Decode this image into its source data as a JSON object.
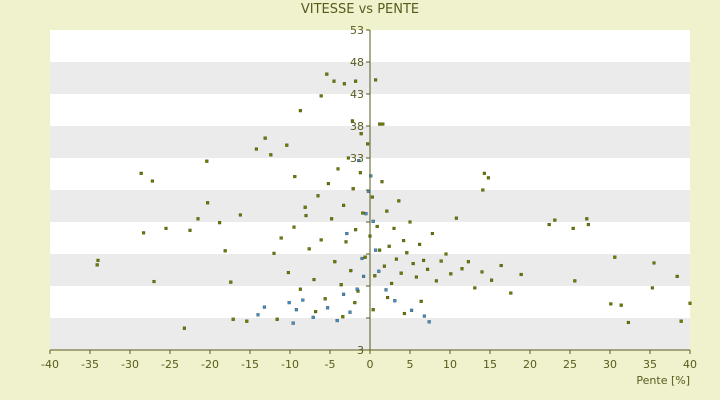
{
  "chart_data": {
    "type": "scatter",
    "title": "VITESSE vs PENTE",
    "xlabel": "Pente [%]",
    "ylabel": "",
    "xlim": [
      -40,
      40
    ],
    "ylim": [
      3,
      53
    ],
    "x_ticks": [
      -40,
      -35,
      -30,
      -25,
      -20,
      -15,
      -10,
      -5,
      0,
      5,
      10,
      15,
      20,
      25,
      30,
      35,
      40
    ],
    "y_ticks": [
      3,
      8,
      13,
      18,
      23,
      28,
      33,
      38,
      43,
      48,
      53
    ],
    "y_ticks_visible_labels": [
      3,
      33,
      38,
      43,
      48,
      53
    ],
    "grid": "horizontal bands",
    "legend": "none",
    "colors": {
      "background": "#eff2cc",
      "plot_light": "#ffffff",
      "plot_band": "#ebebeb",
      "text": "#5a5a1e",
      "axis": "#5a5a1e",
      "series_main": "#6b7a00",
      "series_alt": "#3a8fd8"
    },
    "series": [
      {
        "color": "#6b7a00",
        "points": [
          [
            -34.0,
            17.0
          ],
          [
            -34.1,
            16.3
          ],
          [
            -28.6,
            30.6
          ],
          [
            -28.3,
            21.3
          ],
          [
            -27.2,
            29.4
          ],
          [
            -27.0,
            13.7
          ],
          [
            -25.5,
            22.0
          ],
          [
            -23.2,
            6.4
          ],
          [
            -22.5,
            21.7
          ],
          [
            -21.5,
            23.5
          ],
          [
            -20.4,
            32.5
          ],
          [
            -20.3,
            26.0
          ],
          [
            -18.8,
            22.9
          ],
          [
            -18.1,
            18.5
          ],
          [
            -17.4,
            13.6
          ],
          [
            -17.1,
            7.8
          ],
          [
            -16.2,
            24.1
          ],
          [
            -15.4,
            7.5
          ],
          [
            -14.2,
            34.4
          ],
          [
            -13.1,
            36.1
          ],
          [
            -12.4,
            33.5
          ],
          [
            -11.6,
            7.8
          ],
          [
            -10.4,
            35.0
          ],
          [
            -9.4,
            30.1
          ],
          [
            -8.7,
            40.4
          ],
          [
            -8.0,
            24.0
          ],
          [
            -6.1,
            42.7
          ],
          [
            -5.4,
            46.1
          ],
          [
            -4.5,
            45.0
          ],
          [
            -3.2,
            44.6
          ],
          [
            -2.2,
            38.8
          ],
          [
            -1.8,
            45.0
          ],
          [
            -1.1,
            36.8
          ],
          [
            0.7,
            45.2
          ],
          [
            1.2,
            38.3
          ],
          [
            1.6,
            38.3
          ],
          [
            14.3,
            30.6
          ],
          [
            14.8,
            29.9
          ],
          [
            14.1,
            28.0
          ],
          [
            22.4,
            22.6
          ],
          [
            23.1,
            23.3
          ],
          [
            25.4,
            22.0
          ],
          [
            25.6,
            13.8
          ],
          [
            27.1,
            23.5
          ],
          [
            27.3,
            22.6
          ],
          [
            30.1,
            10.2
          ],
          [
            30.6,
            17.5
          ],
          [
            31.4,
            10.0
          ],
          [
            32.3,
            7.3
          ],
          [
            35.5,
            16.6
          ],
          [
            35.3,
            12.7
          ],
          [
            38.4,
            14.5
          ],
          [
            38.9,
            7.5
          ],
          [
            40.0,
            10.3
          ],
          [
            -12.0,
            18.1
          ],
          [
            -11.1,
            20.5
          ],
          [
            -10.2,
            15.1
          ],
          [
            -9.5,
            22.2
          ],
          [
            -8.7,
            12.5
          ],
          [
            -8.1,
            25.3
          ],
          [
            -7.6,
            18.8
          ],
          [
            -7.0,
            14.0
          ],
          [
            -6.5,
            27.1
          ],
          [
            -6.1,
            20.2
          ],
          [
            -5.6,
            11.0
          ],
          [
            -5.2,
            29.0
          ],
          [
            -4.8,
            23.5
          ],
          [
            -4.4,
            16.8
          ],
          [
            -4.0,
            31.3
          ],
          [
            -3.6,
            13.2
          ],
          [
            -3.3,
            25.6
          ],
          [
            -3.0,
            19.9
          ],
          [
            -2.7,
            33.0
          ],
          [
            -2.4,
            15.4
          ],
          [
            -2.1,
            28.2
          ],
          [
            -1.8,
            21.8
          ],
          [
            -1.5,
            12.2
          ],
          [
            -1.2,
            30.7
          ],
          [
            -0.9,
            24.4
          ],
          [
            -0.6,
            17.5
          ],
          [
            -0.3,
            35.2
          ],
          [
            0.0,
            20.8
          ],
          [
            0.3,
            26.9
          ],
          [
            0.6,
            14.6
          ],
          [
            0.9,
            22.3
          ],
          [
            1.2,
            18.6
          ],
          [
            1.5,
            29.3
          ],
          [
            1.8,
            16.1
          ],
          [
            2.1,
            24.7
          ],
          [
            2.4,
            19.2
          ],
          [
            2.7,
            13.4
          ],
          [
            3.0,
            22.0
          ],
          [
            3.3,
            17.2
          ],
          [
            3.6,
            26.3
          ],
          [
            3.9,
            15.0
          ],
          [
            4.2,
            20.1
          ],
          [
            4.6,
            18.2
          ],
          [
            5.0,
            23.0
          ],
          [
            5.4,
            16.5
          ],
          [
            5.8,
            14.4
          ],
          [
            6.2,
            19.5
          ],
          [
            6.7,
            17.0
          ],
          [
            7.2,
            15.6
          ],
          [
            7.8,
            21.2
          ],
          [
            8.3,
            13.8
          ],
          [
            8.9,
            16.9
          ],
          [
            9.5,
            18.0
          ],
          [
            10.1,
            14.9
          ],
          [
            10.8,
            23.6
          ],
          [
            11.5,
            15.7
          ],
          [
            12.3,
            16.8
          ],
          [
            13.1,
            12.7
          ],
          [
            14.0,
            15.2
          ],
          [
            15.2,
            13.9
          ],
          [
            16.4,
            16.2
          ],
          [
            17.6,
            11.9
          ],
          [
            18.9,
            14.8
          ],
          [
            -3.4,
            8.2
          ],
          [
            -1.9,
            10.4
          ],
          [
            0.4,
            9.3
          ],
          [
            2.2,
            11.2
          ],
          [
            4.3,
            8.7
          ],
          [
            6.4,
            10.6
          ],
          [
            -6.8,
            9.0
          ]
        ]
      },
      {
        "color": "#3a8fd8",
        "points": [
          [
            -14.0,
            8.5
          ],
          [
            -13.2,
            9.7
          ],
          [
            -10.1,
            10.4
          ],
          [
            -9.6,
            7.2
          ],
          [
            -9.2,
            9.3
          ],
          [
            -8.4,
            10.8
          ],
          [
            -7.1,
            8.1
          ],
          [
            -5.3,
            9.6
          ],
          [
            -4.1,
            7.6
          ],
          [
            -3.3,
            11.7
          ],
          [
            -2.5,
            8.9
          ],
          [
            -1.6,
            12.5
          ],
          [
            -1.0,
            17.3
          ],
          [
            -0.5,
            24.3
          ],
          [
            -0.2,
            27.8
          ],
          [
            0.1,
            30.2
          ],
          [
            0.4,
            23.1
          ],
          [
            0.7,
            18.6
          ],
          [
            -0.8,
            14.5
          ],
          [
            1.1,
            15.3
          ],
          [
            2.0,
            12.4
          ],
          [
            3.1,
            10.7
          ],
          [
            5.2,
            9.2
          ],
          [
            6.8,
            8.3
          ],
          [
            7.4,
            7.4
          ],
          [
            -2.9,
            21.2
          ],
          [
            -1.4,
            32.6
          ]
        ]
      }
    ]
  }
}
